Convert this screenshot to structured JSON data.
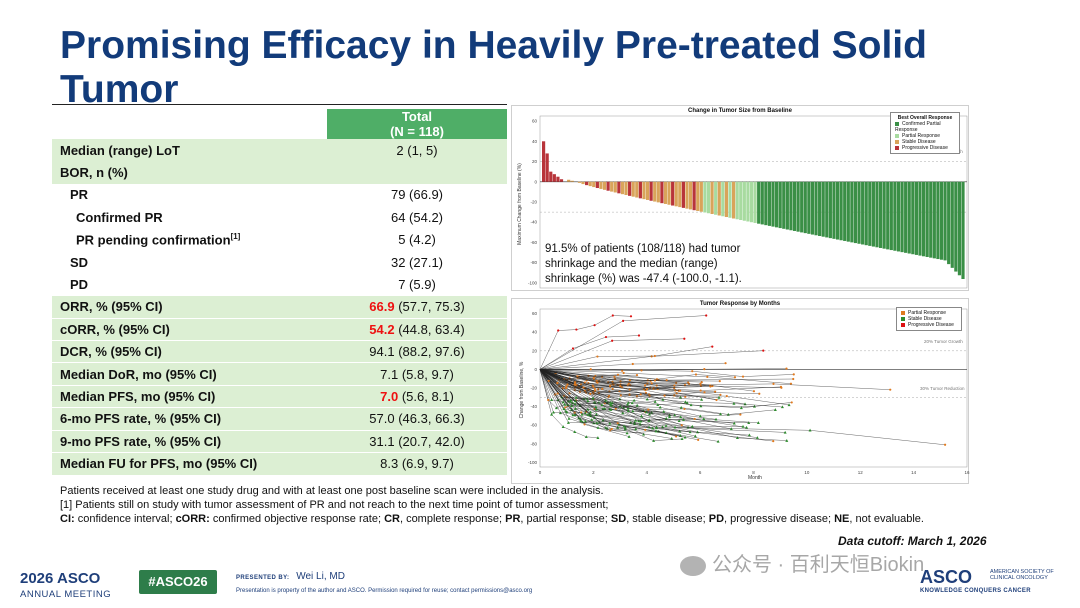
{
  "title": "Promising Efficacy in Heavily Pre-treated Solid Tumor",
  "table": {
    "header_line1": "Total",
    "header_line2": "(N = 118)",
    "rows": [
      {
        "label": "Median (range) LoT",
        "value": "2 (1, 5)"
      },
      {
        "label": "BOR, n (%)",
        "value": ""
      },
      {
        "label": "PR",
        "value": "79 (66.9)"
      },
      {
        "label": "Confirmed PR",
        "value": "64 (54.2)"
      },
      {
        "label": "PR pending confirmation",
        "label_sup": "[1]",
        "value": "5 (4.2)"
      },
      {
        "label": "SD",
        "value": "32 (27.1)"
      },
      {
        "label": "PD",
        "value": "7 (5.9)"
      },
      {
        "label": "ORR, % (95% CI)",
        "value_highlight": "66.9",
        "value_rest": " (57.7, 75.3)"
      },
      {
        "label": "cORR, % (95% CI)",
        "value_highlight": "54.2",
        "value_rest": " (44.8, 63.4)"
      },
      {
        "label": "DCR, % (95% CI)",
        "value": "94.1 (88.2, 97.6)"
      },
      {
        "label": "Median DoR, mo (95% CI)",
        "value": "7.1 (5.8, 9.7)"
      },
      {
        "label": "Median PFS, mo (95% CI)",
        "value_highlight": "7.0",
        "value_rest": " (5.6, 8.1)"
      },
      {
        "label": "6-mo PFS rate, % (95% CI)",
        "value": "57.0 (46.3, 66.3)"
      },
      {
        "label": "9-mo PFS rate, % (95% CI)",
        "value": "31.1 (20.7, 42.0)"
      },
      {
        "label": "Median FU for PFS, mo (95% CI)",
        "value": "8.3 (6.9, 9.7)"
      }
    ]
  },
  "waterfall": {
    "title": "Change in Tumor Size from Baseline",
    "ylabel": "Maximum Change from Baseline (%)",
    "ref_line": "20% Tumor Growth",
    "legend_title": "Best Overall Response",
    "legend": [
      {
        "label": "Confirmed Partial Response",
        "color": "#3a8f46"
      },
      {
        "label": "Partial Response",
        "color": "#a8dba0"
      },
      {
        "label": "Stable Disease",
        "color": "#d9a45a"
      },
      {
        "label": "Progressive Disease",
        "color": "#b8343a"
      }
    ],
    "y_ticks": [
      "60",
      "40",
      "20",
      "0",
      "-20",
      "-40",
      "-60",
      "-80",
      "-100"
    ],
    "annotation": "91.5% of patients (108/118) had tumor shrinkage and the median (range) shrinkage (%) was -47.4 (-100.0, -1.1)."
  },
  "spider": {
    "title": "Tumor Response by Months",
    "ylabel": "Change from Baseline, %",
    "xlabel": "Month",
    "ref_top": "20% Tumor Growth",
    "ref_bottom": "30% Tumor Reduction",
    "legend": [
      {
        "label": "Partial Response",
        "color": "#e07a1f"
      },
      {
        "label": "Stable Disease",
        "color": "#2e8b2e"
      },
      {
        "label": "Progressive Disease",
        "color": "#d11"
      }
    ],
    "y_ticks": [
      "60",
      "40",
      "20",
      "0",
      "-20",
      "-40",
      "-60",
      "-80",
      "-100"
    ],
    "x_ticks": [
      "0",
      "2",
      "4",
      "6",
      "8",
      "10",
      "12",
      "14",
      "16"
    ]
  },
  "notes": {
    "line1": "Patients received at least one study drug and with at least one post baseline scan were included in the analysis.",
    "line2": "[1] Patients still on study with tumor assessment of PR and not reach to the next time point of tumor assessment;",
    "abbr": [
      {
        "k": "CI:",
        "v": " confidence interval; "
      },
      {
        "k": "cORR:",
        "v": " confirmed objective response rate; "
      },
      {
        "k": "CR",
        "v": ", complete response; "
      },
      {
        "k": "PR",
        "v": ", partial response; "
      },
      {
        "k": "SD",
        "v": ", stable disease; "
      },
      {
        "k": "PD",
        "v": ", progressive disease; "
      },
      {
        "k": "NE",
        "v": ", not evaluable."
      }
    ],
    "cutoff": "Data cutoff: March 1, 2026"
  },
  "footer": {
    "meeting_year": "2026",
    "meeting_name": "ASCO",
    "meeting_sub": "ANNUAL MEETING",
    "hashtag": "#ASCO26",
    "presented_by_label": "PRESENTED BY:",
    "presenter": "Wei Li, MD",
    "property": "Presentation is property of the author and ASCO. Permission required for reuse; contact permissions@asco.org",
    "watermark": "公众号 · 百利天恒Biokin",
    "asco_right": "ASCO",
    "asco_right_sub1": "AMERICAN SOCIETY OF",
    "asco_right_sub2": "CLINICAL ONCOLOGY",
    "asco_tagline": "KNOWLEDGE CONQUERS CANCER"
  }
}
